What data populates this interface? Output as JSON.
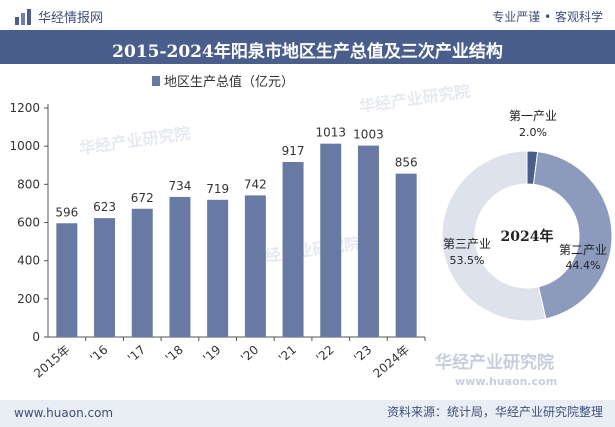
{
  "header": {
    "brand": "华经情报网",
    "slogan": "专业严谨 • 客观科学"
  },
  "footer": {
    "website": "www.huaon.com",
    "source": "资料来源：统计局，华经产业研究院整理"
  },
  "watermark": {
    "cn": "华经产业研究院",
    "en": "www.huaon.com"
  },
  "colors": {
    "bar": "#687aa3",
    "title_band": "#4a5e8c",
    "donut_primary": "#4a5e8c",
    "donut_secondary": "#8c9bbd",
    "donut_tertiary": "#dde2ec"
  },
  "chart_data": [
    {
      "type": "bar",
      "title": "2015-2024年阳泉市地区生产总值及三次产业结构",
      "legend": "地区生产总值（亿元）",
      "categories": [
        "2015年",
        "'16",
        "'17",
        "'18",
        "'19",
        "'20",
        "'21",
        "'22",
        "'23",
        "2024年"
      ],
      "series": [
        {
          "name": "地区生产总值（亿元）",
          "values": [
            596,
            623,
            672,
            734,
            719,
            742,
            917,
            1013,
            1003,
            856
          ]
        }
      ],
      "ylim": [
        0,
        1200
      ],
      "yticks": [
        0,
        200,
        400,
        600,
        800,
        1000,
        1200
      ],
      "grid": false
    },
    {
      "type": "pie",
      "center_label": "2024年",
      "slices": [
        {
          "label": "第一产业",
          "value": 2.0,
          "display": "2.0%"
        },
        {
          "label": "第二产业",
          "value": 44.4,
          "display": "44.4%"
        },
        {
          "label": "第三产业",
          "value": 53.5,
          "display": "53.5%"
        }
      ]
    }
  ]
}
